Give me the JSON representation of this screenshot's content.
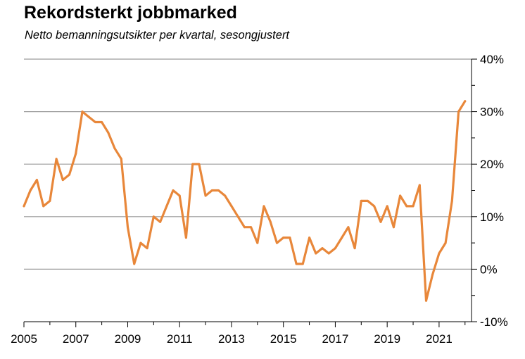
{
  "header": {
    "title": "Rekordsterkt jobbmarked",
    "subtitle": "Netto bemanningsutsikter per kvartal, sesongjustert"
  },
  "chart_data": {
    "type": "line",
    "title": "Rekordsterkt jobbmarked",
    "subtitle": "Netto bemanningsutsikter per kvartal, sesongjustert",
    "xlabel": "",
    "ylabel": "",
    "xlim": [
      2005,
      2022.25
    ],
    "ylim": [
      -10,
      40
    ],
    "y_axis_position": "right",
    "grid": "horizontal",
    "legend": "none",
    "x_tick_labels": [
      "2005",
      "2007",
      "2009",
      "2011",
      "2013",
      "2015",
      "2017",
      "2019",
      "2021"
    ],
    "x_ticks": [
      2005,
      2007,
      2009,
      2011,
      2013,
      2015,
      2017,
      2019,
      2021
    ],
    "y_ticks": [
      -10,
      0,
      10,
      20,
      30,
      40
    ],
    "y_tick_labels": [
      "-10%",
      "0%",
      "10%",
      "20%",
      "30%",
      "40%"
    ],
    "line_color": "#E8873A",
    "series": [
      {
        "x": [
          2005.0,
          2005.25,
          2005.5,
          2005.75,
          2006.0,
          2006.25,
          2006.5,
          2006.75,
          2007.0,
          2007.25,
          2007.5,
          2007.75,
          2008.0,
          2008.25,
          2008.5,
          2008.75,
          2009.0,
          2009.25,
          2009.5,
          2009.75,
          2010.0,
          2010.25,
          2010.5,
          2010.75,
          2011.0,
          2011.25,
          2011.5,
          2011.75,
          2012.0,
          2012.25,
          2012.5,
          2012.75,
          2013.0,
          2013.25,
          2013.5,
          2013.75,
          2014.0,
          2014.25,
          2014.5,
          2014.75,
          2015.0,
          2015.25,
          2015.5,
          2015.75,
          2016.0,
          2016.25,
          2016.5,
          2016.75,
          2017.0,
          2017.25,
          2017.5,
          2017.75,
          2018.0,
          2018.25,
          2018.5,
          2018.75,
          2019.0,
          2019.25,
          2019.5,
          2019.75,
          2020.0,
          2020.25,
          2020.5,
          2020.75,
          2021.0,
          2021.25,
          2021.5,
          2021.75,
          2022.0
        ],
        "values": [
          12,
          15,
          17,
          12,
          13,
          21,
          17,
          18,
          22,
          30,
          29,
          28,
          28,
          26,
          23,
          21,
          8,
          1,
          5,
          4,
          10,
          9,
          12,
          15,
          14,
          6,
          20,
          20,
          14,
          15,
          15,
          14,
          12,
          10,
          8,
          8,
          5,
          12,
          9,
          5,
          6,
          6,
          1,
          1,
          6,
          3,
          4,
          3,
          4,
          6,
          8,
          4,
          13,
          13,
          12,
          9,
          12,
          8,
          14,
          12,
          12,
          16,
          -6,
          -1,
          3,
          5,
          13,
          30,
          32
        ]
      }
    ]
  }
}
